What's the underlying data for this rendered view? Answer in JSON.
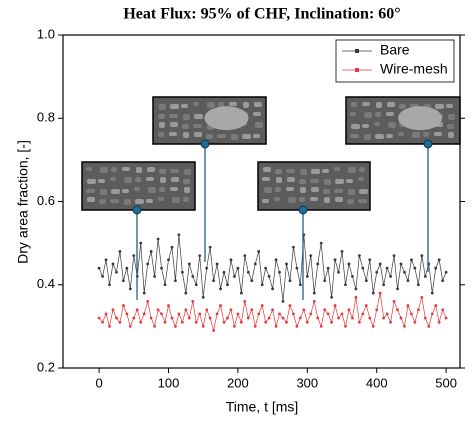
{
  "chart_data": {
    "type": "line",
    "title": "Heat Flux: 95% of CHF, Inclination: 60°",
    "x_label": "Time, t [ms]",
    "y_label": "Dry area fraction, [-]",
    "x": [
      0,
      5,
      10,
      15,
      20,
      25,
      30,
      35,
      40,
      45,
      50,
      55,
      60,
      65,
      70,
      75,
      80,
      85,
      90,
      95,
      100,
      105,
      110,
      115,
      120,
      125,
      130,
      135,
      140,
      145,
      150,
      155,
      160,
      165,
      170,
      175,
      180,
      185,
      190,
      195,
      200,
      205,
      210,
      215,
      220,
      225,
      230,
      235,
      240,
      245,
      250,
      255,
      260,
      265,
      270,
      275,
      280,
      285,
      290,
      295,
      300,
      305,
      310,
      315,
      320,
      325,
      330,
      335,
      340,
      345,
      350,
      355,
      360,
      365,
      370,
      375,
      380,
      385,
      390,
      395,
      400,
      405,
      410,
      415,
      420,
      425,
      430,
      435,
      440,
      445,
      450,
      455,
      460,
      465,
      470,
      475,
      480,
      485,
      490,
      495,
      500
    ],
    "series": [
      {
        "name": "Bare",
        "color": "#3a3a3a",
        "values": [
          0.44,
          0.42,
          0.46,
          0.4,
          0.45,
          0.43,
          0.48,
          0.41,
          0.44,
          0.39,
          0.47,
          0.42,
          0.5,
          0.38,
          0.45,
          0.48,
          0.42,
          0.51,
          0.44,
          0.4,
          0.46,
          0.49,
          0.41,
          0.52,
          0.43,
          0.38,
          0.45,
          0.42,
          0.4,
          0.47,
          0.37,
          0.44,
          0.49,
          0.41,
          0.45,
          0.39,
          0.43,
          0.4,
          0.46,
          0.42,
          0.44,
          0.38,
          0.47,
          0.43,
          0.41,
          0.45,
          0.48,
          0.4,
          0.44,
          0.42,
          0.39,
          0.46,
          0.43,
          0.36,
          0.45,
          0.41,
          0.49,
          0.44,
          0.4,
          0.52,
          0.42,
          0.47,
          0.38,
          0.45,
          0.5,
          0.41,
          0.44,
          0.37,
          0.46,
          0.43,
          0.48,
          0.4,
          0.45,
          0.42,
          0.39,
          0.47,
          0.44,
          0.41,
          0.46,
          0.38,
          0.43,
          0.45,
          0.4,
          0.44,
          0.42,
          0.47,
          0.39,
          0.45,
          0.43,
          0.41,
          0.46,
          0.44,
          0.4,
          0.47,
          0.42,
          0.45,
          0.38,
          0.44,
          0.46,
          0.41,
          0.43
        ]
      },
      {
        "name": "Wire-mesh",
        "color": "#e8393a",
        "values": [
          0.32,
          0.31,
          0.33,
          0.3,
          0.34,
          0.32,
          0.31,
          0.35,
          0.33,
          0.3,
          0.32,
          0.34,
          0.31,
          0.33,
          0.36,
          0.32,
          0.3,
          0.34,
          0.33,
          0.31,
          0.35,
          0.32,
          0.3,
          0.33,
          0.31,
          0.34,
          0.32,
          0.36,
          0.31,
          0.33,
          0.3,
          0.34,
          0.32,
          0.29,
          0.33,
          0.35,
          0.31,
          0.32,
          0.34,
          0.3,
          0.33,
          0.31,
          0.36,
          0.32,
          0.34,
          0.3,
          0.33,
          0.35,
          0.31,
          0.32,
          0.34,
          0.3,
          0.33,
          0.32,
          0.31,
          0.35,
          0.33,
          0.3,
          0.32,
          0.34,
          0.31,
          0.33,
          0.36,
          0.32,
          0.3,
          0.34,
          0.33,
          0.31,
          0.35,
          0.32,
          0.33,
          0.3,
          0.34,
          0.32,
          0.37,
          0.31,
          0.33,
          0.35,
          0.32,
          0.3,
          0.34,
          0.38,
          0.32,
          0.33,
          0.31,
          0.36,
          0.34,
          0.32,
          0.3,
          0.35,
          0.33,
          0.31,
          0.34,
          0.37,
          0.32,
          0.3,
          0.33,
          0.35,
          0.31,
          0.34,
          0.32
        ]
      }
    ],
    "xlim": [
      -52,
      520
    ],
    "xticks": [
      0,
      100,
      200,
      300,
      400,
      500
    ],
    "ylim": [
      0.2,
      1.0
    ],
    "yticks": [
      0.2,
      0.4,
      0.6,
      0.8,
      {
        "value": 1.0,
        "label": "1.0"
      }
    ],
    "legend": "top-right"
  }
}
